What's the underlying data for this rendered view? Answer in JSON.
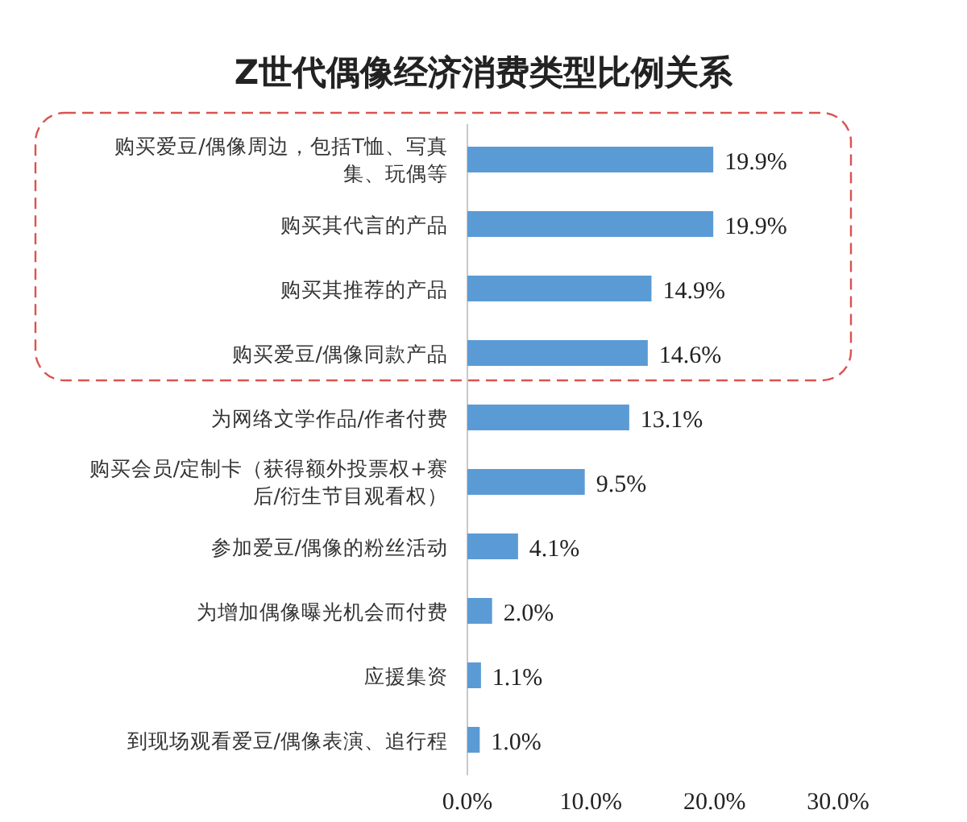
{
  "chart_data": {
    "type": "bar",
    "orientation": "horizontal",
    "title": "Z世代偶像经济消费类型比例关系",
    "categories": [
      "购买爱豆/偶像周边，包括T恤、写真集、玩偶等",
      "购买其代言的产品",
      "购买其推荐的产品",
      "购买爱豆/偶像同款产品",
      "为网络文学作品/作者付费",
      "购买会员/定制卡（获得额外投票权+赛后/衍生节目观看权）",
      "参加爱豆/偶像的粉丝活动",
      "为增加偶像曝光机会而付费",
      "应援集资",
      "到现场观看爱豆/偶像表演、追行程"
    ],
    "values": [
      19.9,
      19.9,
      14.9,
      14.6,
      13.1,
      9.5,
      4.1,
      2.0,
      1.1,
      1.0
    ],
    "color": "#5b9bd5",
    "value_labels": [
      "19.9%",
      "19.9%",
      "14.9%",
      "14.6%",
      "13.1%",
      "9.5%",
      "4.1%",
      "2.0%",
      "1.1%",
      "1.0%"
    ],
    "xlim": [
      0,
      30
    ],
    "xticks": [
      {
        "value": 0,
        "label": "0.0%"
      },
      {
        "value": 10,
        "label": "10.0%"
      },
      {
        "value": 20,
        "label": "20.0%"
      },
      {
        "value": 30,
        "label": "30.0%"
      }
    ],
    "grid": false
  }
}
